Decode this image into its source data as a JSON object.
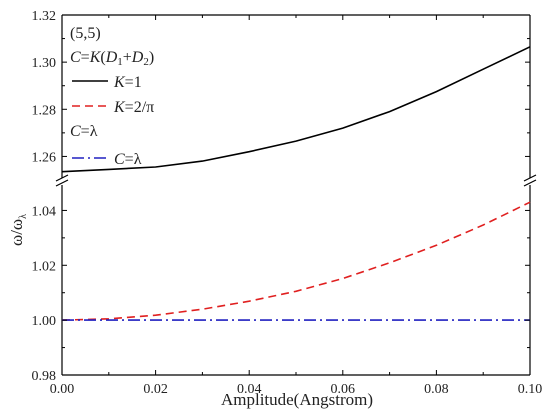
{
  "chart_data": {
    "type": "line",
    "xlabel": "Amplitude(Angstrom)",
    "ylabel": "ω/ω",
    "ylabel_sub": "λ",
    "xlim": [
      0.0,
      0.1
    ],
    "x_ticks": [
      "0.00",
      "0.02",
      "0.04",
      "0.06",
      "0.08",
      "0.10"
    ],
    "y_broken": true,
    "upper_panel": {
      "ylim": [
        1.25,
        1.32
      ],
      "y_ticks": [
        "1.26",
        "1.28",
        "1.30",
        "1.32"
      ]
    },
    "lower_panel": {
      "ylim": [
        0.98,
        1.05
      ],
      "y_ticks": [
        "0.98",
        "1.00",
        "1.02",
        "1.04"
      ]
    },
    "legend": {
      "header": "(5,5)",
      "group1_title": "C=K(D1+D2)",
      "group2_title": "C=λ"
    },
    "series": [
      {
        "name": "K=1",
        "panel": "upper",
        "color": "#000000",
        "style": "solid",
        "x": [
          0.0,
          0.01,
          0.02,
          0.03,
          0.04,
          0.05,
          0.06,
          0.07,
          0.08,
          0.09,
          0.1
        ],
        "values": [
          1.2535,
          1.2545,
          1.2555,
          1.258,
          1.262,
          1.2665,
          1.272,
          1.279,
          1.2875,
          1.297,
          1.3065
        ]
      },
      {
        "name": "K=2/π",
        "panel": "lower",
        "color": "#e02020",
        "style": "dashed",
        "x": [
          0.0,
          0.01,
          0.02,
          0.03,
          0.04,
          0.05,
          0.06,
          0.07,
          0.08,
          0.09,
          0.1
        ],
        "values": [
          1.0,
          1.0005,
          1.0018,
          1.004,
          1.0069,
          1.0105,
          1.0152,
          1.0209,
          1.0273,
          1.0347,
          1.043
        ]
      },
      {
        "name": "C=λ",
        "panel": "lower",
        "color": "#2020c0",
        "style": "dashdot",
        "x": [
          0.0,
          0.1
        ],
        "values": [
          1.0,
          1.0
        ]
      }
    ]
  }
}
